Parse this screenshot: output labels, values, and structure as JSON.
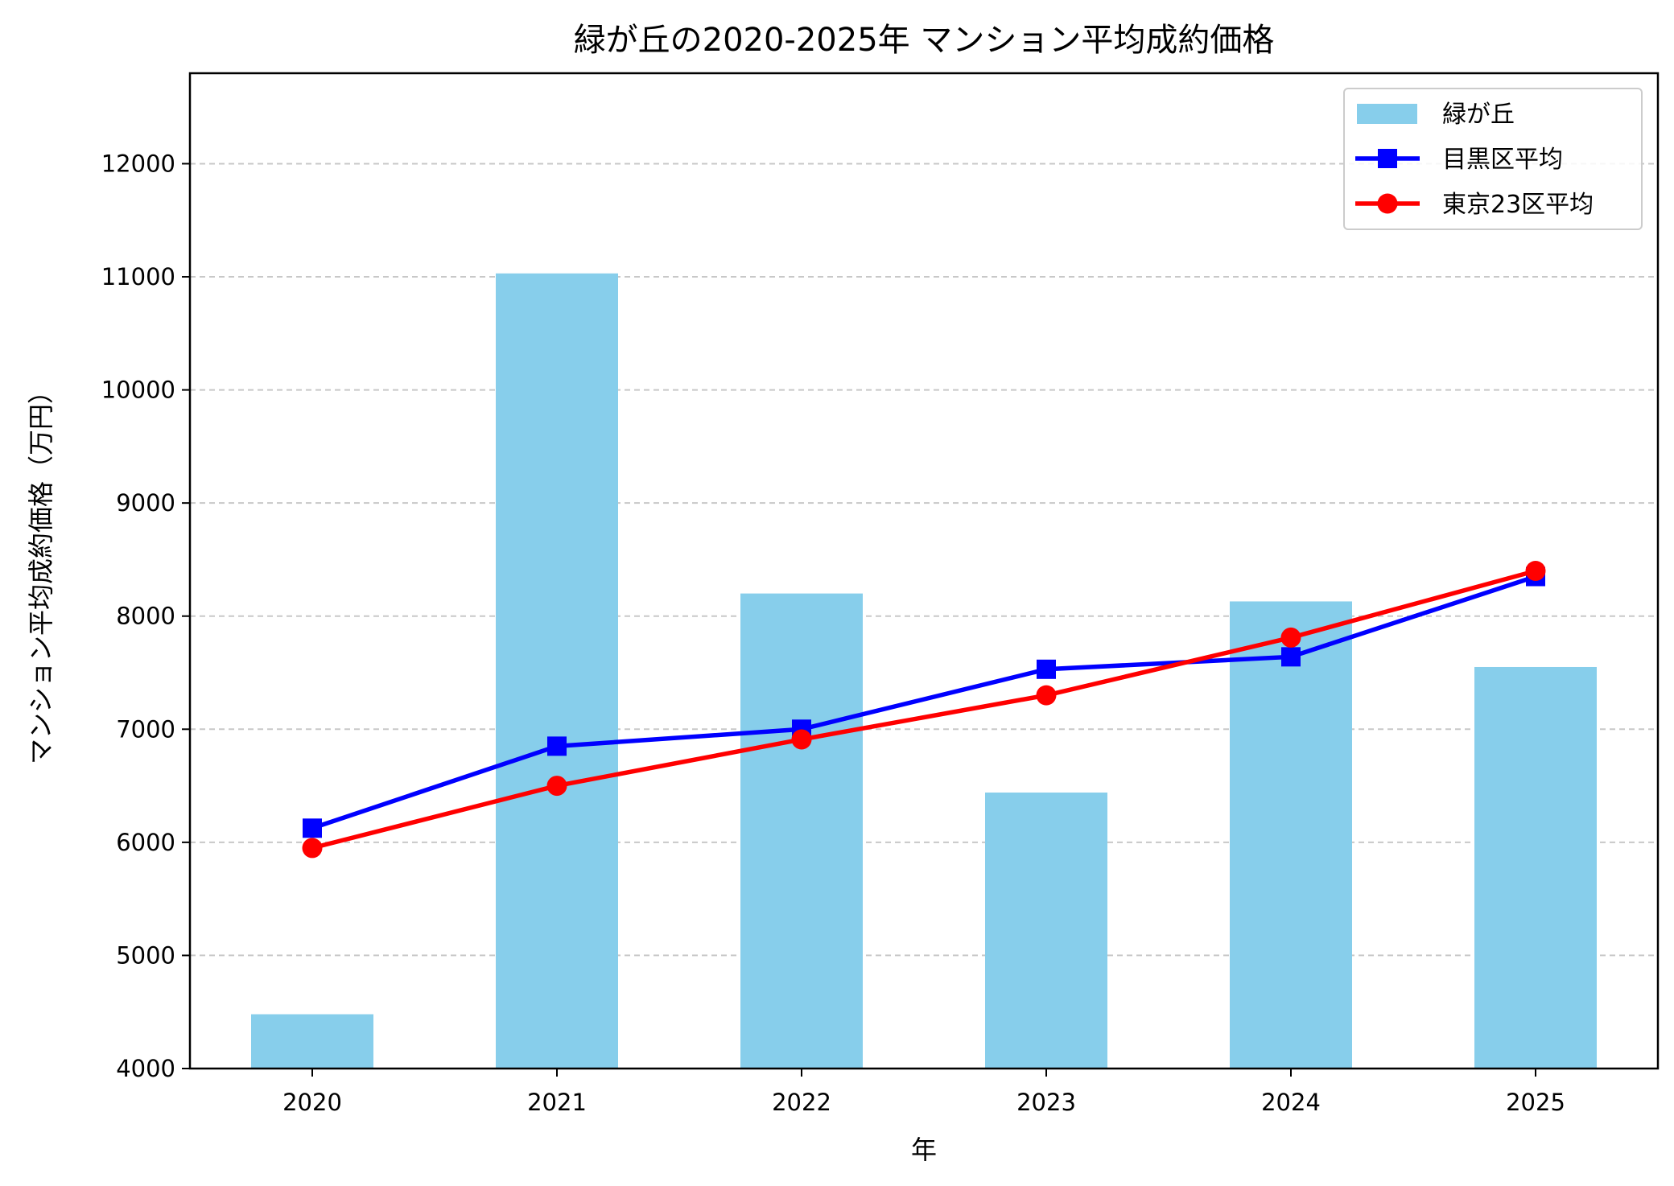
{
  "chart_data": {
    "type": "bar+line",
    "title": "緑が丘の2020-2025年 マンション平均成約価格",
    "xlabel": "年",
    "ylabel": "マンション平均成約価格（万円）",
    "categories": [
      "2020",
      "2021",
      "2022",
      "2023",
      "2024",
      "2025"
    ],
    "ylim": [
      4000,
      12800
    ],
    "yticks": [
      4000,
      5000,
      6000,
      7000,
      8000,
      9000,
      10000,
      11000,
      12000
    ],
    "grid": "y-dashed",
    "legend_position": "top-right",
    "series": [
      {
        "name": "緑が丘",
        "kind": "bar",
        "color": "#87CEEB",
        "values": [
          4480,
          11030,
          8200,
          6440,
          8130,
          7550
        ]
      },
      {
        "name": "目黒区平均",
        "kind": "line",
        "marker": "square",
        "color": "#0000FF",
        "values": [
          6125,
          6850,
          7000,
          7530,
          7640,
          8350
        ]
      },
      {
        "name": "東京23区平均",
        "kind": "line",
        "marker": "circle",
        "color": "#FF0000",
        "values": [
          5950,
          6500,
          6910,
          7300,
          7810,
          8400
        ]
      }
    ]
  }
}
